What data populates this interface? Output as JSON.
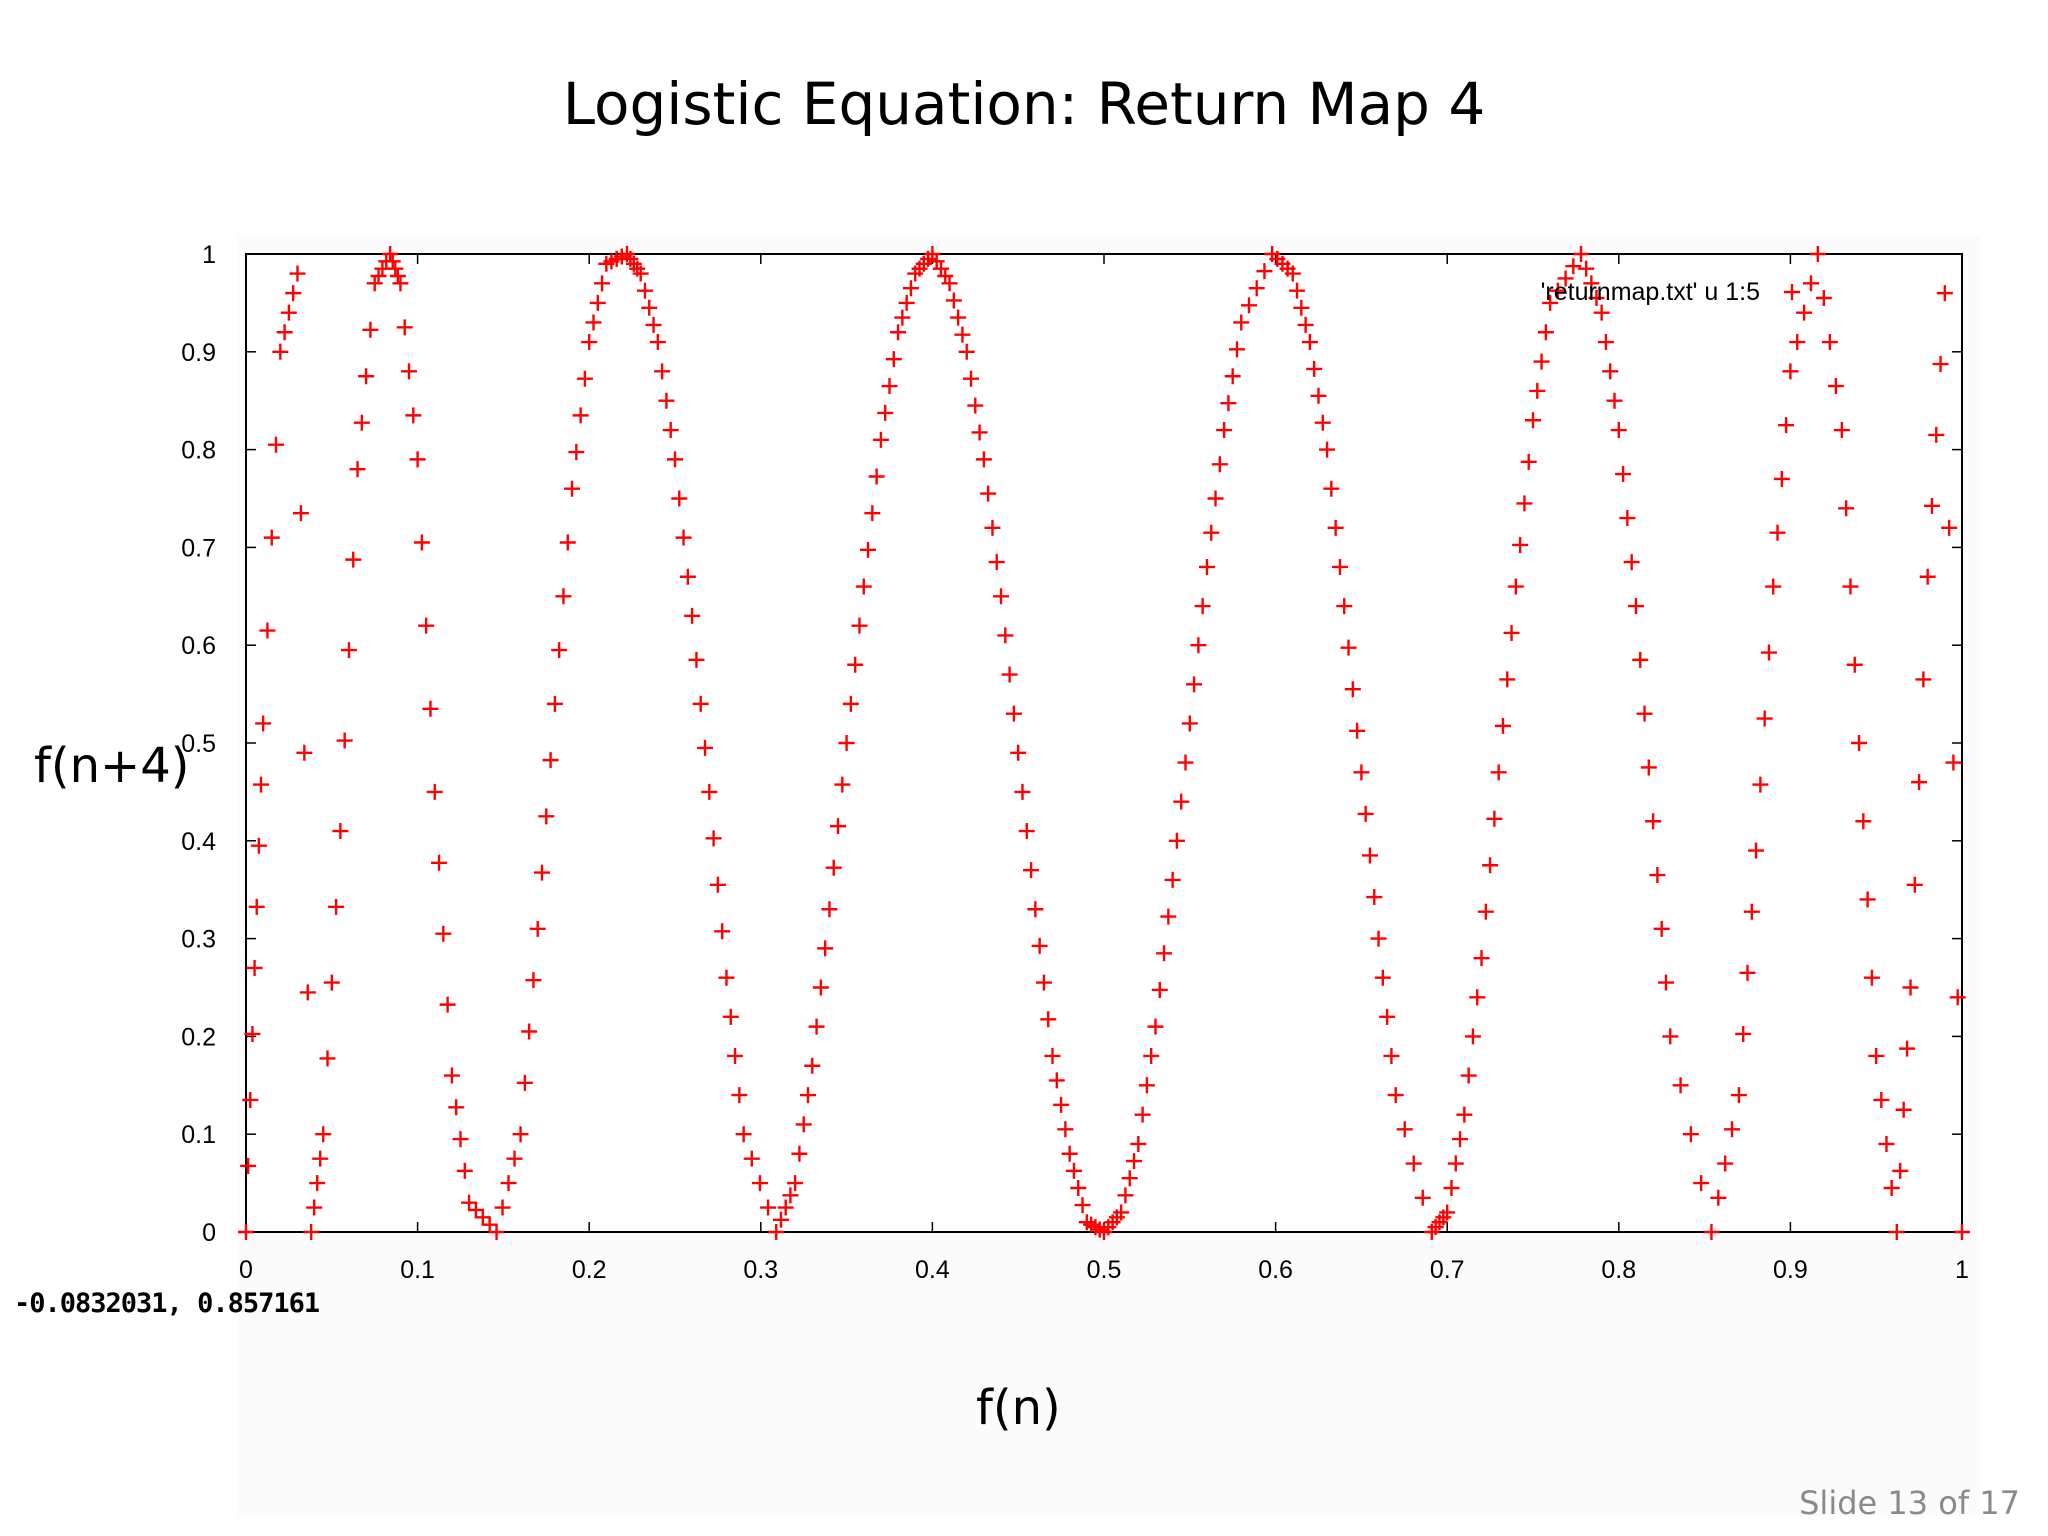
{
  "slide": {
    "title": "Logistic Equation: Return Map 4",
    "y_label": "f(n+4)",
    "x_label": "f(n)",
    "slide_number": "Slide 13 of 17"
  },
  "plot_window": {
    "coordinate_readout": "-0.0832031,  0.857161"
  },
  "chart_data": {
    "type": "scatter",
    "title": "",
    "xlabel": "f(n)",
    "ylabel": "f(n+4)",
    "xlim": [
      0,
      1
    ],
    "ylim": [
      0,
      1
    ],
    "xticks": [
      "0",
      "0.1",
      "0.2",
      "0.3",
      "0.4",
      "0.5",
      "0.6",
      "0.7",
      "0.8",
      "0.9",
      "1"
    ],
    "yticks": [
      "0",
      "0.1",
      "0.2",
      "0.3",
      "0.4",
      "0.5",
      "0.6",
      "0.7",
      "0.8",
      "0.9",
      "1"
    ],
    "grid": false,
    "legend_position": "top-right",
    "series": [
      {
        "name": "'returnmap.txt' u 1:5",
        "marker": "+",
        "color": "#ff0000",
        "description_of_relation": "y = f^4(x) with f(x) = 4x(1-x)",
        "x": [
          0.0,
          0.005,
          0.01,
          0.02,
          0.03,
          0.038,
          0.045,
          0.055,
          0.065,
          0.075,
          0.084,
          0.09,
          0.1,
          0.11,
          0.12,
          0.13,
          0.146,
          0.16,
          0.17,
          0.18,
          0.19,
          0.2,
          0.21,
          0.222,
          0.23,
          0.24,
          0.25,
          0.26,
          0.27,
          0.28,
          0.29,
          0.309,
          0.32,
          0.33,
          0.34,
          0.35,
          0.36,
          0.37,
          0.38,
          0.39,
          0.4,
          0.41,
          0.42,
          0.43,
          0.44,
          0.45,
          0.46,
          0.47,
          0.48,
          0.49,
          0.5,
          0.51,
          0.52,
          0.53,
          0.54,
          0.55,
          0.56,
          0.57,
          0.58,
          0.598,
          0.61,
          0.62,
          0.63,
          0.64,
          0.65,
          0.66,
          0.67,
          0.691,
          0.7,
          0.71,
          0.72,
          0.73,
          0.74,
          0.75,
          0.76,
          0.778,
          0.79,
          0.8,
          0.81,
          0.82,
          0.83,
          0.854,
          0.87,
          0.88,
          0.89,
          0.9,
          0.916,
          0.93,
          0.94,
          0.95,
          0.962,
          0.97,
          0.98,
          0.99,
          1.0
        ],
        "y": [
          0.0,
          0.27,
          0.52,
          0.9,
          0.98,
          0.0,
          0.1,
          0.41,
          0.78,
          0.97,
          1.0,
          0.97,
          0.79,
          0.45,
          0.16,
          0.03,
          0.0,
          0.1,
          0.31,
          0.54,
          0.76,
          0.91,
          0.99,
          1.0,
          0.98,
          0.91,
          0.79,
          0.63,
          0.45,
          0.26,
          0.1,
          0.0,
          0.05,
          0.17,
          0.33,
          0.5,
          0.66,
          0.81,
          0.92,
          0.98,
          1.0,
          0.97,
          0.9,
          0.79,
          0.65,
          0.49,
          0.33,
          0.18,
          0.08,
          0.01,
          0.0,
          0.02,
          0.09,
          0.21,
          0.36,
          0.52,
          0.68,
          0.82,
          0.93,
          1.0,
          0.98,
          0.91,
          0.8,
          0.64,
          0.47,
          0.3,
          0.14,
          0.0,
          0.02,
          0.12,
          0.28,
          0.47,
          0.66,
          0.83,
          0.95,
          1.0,
          0.94,
          0.82,
          0.64,
          0.42,
          0.2,
          0.0,
          0.14,
          0.39,
          0.66,
          0.88,
          1.0,
          0.82,
          0.5,
          0.18,
          0.0,
          0.25,
          0.67,
          0.96,
          0.0
        ]
      }
    ]
  }
}
